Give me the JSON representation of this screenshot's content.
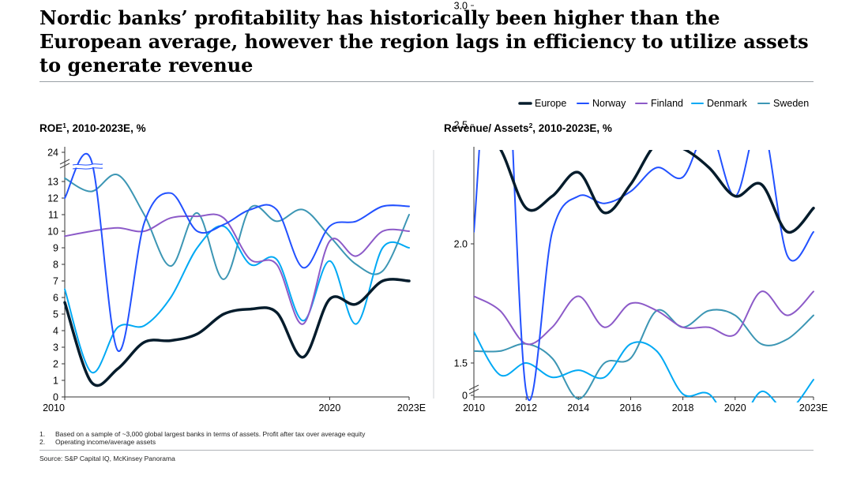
{
  "title": "Nordic banks’ profitability has historically been higher than the European average, however the region lags in efficiency to utilize assets to generate revenue",
  "legend": [
    {
      "name": "Europe",
      "color": "#051c2c"
    },
    {
      "name": "Norway",
      "color": "#2251ff"
    },
    {
      "name": "Finland",
      "color": "#8c5ac8"
    },
    {
      "name": "Denmark",
      "color": "#00a9f4"
    },
    {
      "name": "Sweden",
      "color": "#3c96b4"
    }
  ],
  "footnotes": [
    {
      "num": "1.",
      "text": "Based on a sample of ~3,000 global largest banks in terms of assets. Profit after tax over average equity"
    },
    {
      "num": "2.",
      "text": "Operating income/average assets"
    }
  ],
  "source": "Source: S&P Capital IQ, McKinsey Panorama",
  "chart_data": [
    {
      "type": "line",
      "title": "ROE",
      "title_sup": "1",
      "title_suffix": ", 2010-2023E, %",
      "y_ticks": [
        "0",
        "1",
        "2",
        "3",
        "4",
        "5",
        "6",
        "7",
        "8",
        "9",
        "10",
        "11",
        "12",
        "13",
        "24"
      ],
      "ylim": [
        0,
        13.6
      ],
      "axis_break": "13–24",
      "x_tick_labels": [
        "2010",
        "2020",
        "2023E"
      ],
      "x_tick_years": [
        2010,
        2020,
        2023
      ],
      "x": [
        2010,
        2011,
        2012,
        2013,
        2014,
        2015,
        2016,
        2017,
        2018,
        2019,
        2020,
        2021,
        2022,
        2023
      ],
      "series": [
        {
          "name": "Europe",
          "values": [
            5.7,
            0.9,
            1.7,
            3.3,
            3.4,
            3.8,
            5.0,
            5.3,
            5.1,
            2.4,
            5.9,
            5.6,
            7.0,
            7.0
          ]
        },
        {
          "name": "Norway",
          "values": [
            12.0,
            24,
            2.8,
            10.5,
            12.3,
            10.0,
            10.4,
            11.3,
            11.3,
            7.8,
            10.3,
            10.6,
            11.5,
            11.5
          ]
        },
        {
          "name": "Finland",
          "values": [
            9.7,
            10.0,
            10.2,
            10.0,
            10.8,
            10.9,
            10.8,
            8.3,
            8.0,
            4.4,
            9.4,
            8.5,
            10.0,
            10.0
          ]
        },
        {
          "name": "Denmark",
          "values": [
            6.5,
            1.5,
            4.2,
            4.3,
            6.0,
            9.0,
            10.3,
            8.0,
            8.3,
            4.6,
            8.2,
            4.4,
            9.0,
            9.0
          ]
        },
        {
          "name": "Sweden",
          "values": [
            13.2,
            12.4,
            13.4,
            11.0,
            7.9,
            11.1,
            7.1,
            11.4,
            10.6,
            11.3,
            9.7,
            8.0,
            7.6,
            11.0
          ]
        }
      ]
    },
    {
      "type": "line",
      "title": "Revenue/ Assets",
      "title_sup": "2",
      "title_suffix": ", 2010-2023E, %",
      "y_ticks": [
        "0",
        "1.5",
        "2.0",
        "2.5",
        "3.0"
      ],
      "ylim": [
        1.2,
        3.3
      ],
      "axis_break": "0–1.2",
      "x_tick_labels": [
        "2010",
        "2012",
        "2014",
        "2016",
        "2018",
        "2020",
        "2023E"
      ],
      "x_tick_years": [
        2010,
        2012,
        2014,
        2016,
        2018,
        2020,
        2023
      ],
      "x": [
        2010,
        2011,
        2012,
        2013,
        2014,
        2015,
        2016,
        2017,
        2018,
        2019,
        2020,
        2021,
        2022,
        2023
      ],
      "series": [
        {
          "name": "Europe",
          "values": [
            2.5,
            2.4,
            2.15,
            2.2,
            2.3,
            2.13,
            2.25,
            2.42,
            2.4,
            2.32,
            2.2,
            2.25,
            2.05,
            2.15
          ]
        },
        {
          "name": "Norway",
          "values": [
            2.05,
            3.3,
            1.38,
            2.05,
            2.2,
            2.17,
            2.22,
            2.32,
            2.28,
            2.48,
            2.2,
            2.52,
            1.95,
            2.05
          ]
        },
        {
          "name": "Finland",
          "values": [
            1.78,
            1.72,
            1.58,
            1.65,
            1.78,
            1.65,
            1.75,
            1.72,
            1.65,
            1.65,
            1.62,
            1.8,
            1.7,
            1.8
          ]
        },
        {
          "name": "Denmark",
          "values": [
            1.63,
            1.45,
            1.5,
            1.44,
            1.47,
            1.44,
            1.58,
            1.55,
            1.37,
            1.37,
            1.23,
            1.38,
            1.3,
            1.43
          ]
        },
        {
          "name": "Sweden",
          "values": [
            1.55,
            1.55,
            1.58,
            1.52,
            1.35,
            1.5,
            1.52,
            1.72,
            1.65,
            1.72,
            1.7,
            1.58,
            1.6,
            1.7
          ]
        }
      ]
    }
  ]
}
